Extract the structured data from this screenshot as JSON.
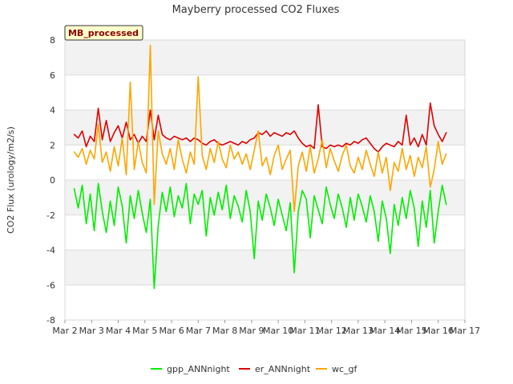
{
  "chart_data": {
    "type": "line",
    "title": "Mayberry processed CO2 Fluxes",
    "ylabel": "CO2 Flux (urology/m2/s)",
    "xlabel": "",
    "tag": "MB_processed",
    "ylim": [
      -8,
      8
    ],
    "yticks": [
      -8,
      -6,
      -4,
      -2,
      0,
      2,
      4,
      6,
      8
    ],
    "xlim": [
      2,
      17
    ],
    "xticks": [
      {
        "v": 2,
        "label": "Mar 2"
      },
      {
        "v": 3,
        "label": "Mar 3"
      },
      {
        "v": 4,
        "label": "Mar 4"
      },
      {
        "v": 5,
        "label": "Mar 5"
      },
      {
        "v": 6,
        "label": "Mar 6"
      },
      {
        "v": 7,
        "label": "Mar 7"
      },
      {
        "v": 8,
        "label": "Mar 8"
      },
      {
        "v": 9,
        "label": "Mar 9"
      },
      {
        "v": 10,
        "label": "Mar 10"
      },
      {
        "v": 11,
        "label": "Mar 11"
      },
      {
        "v": 12,
        "label": "Mar 12"
      },
      {
        "v": 13,
        "label": "Mar 13"
      },
      {
        "v": 14,
        "label": "Mar 14"
      },
      {
        "v": 15,
        "label": "Mar 15"
      },
      {
        "v": 16,
        "label": "Mar 16"
      },
      {
        "v": 17,
        "label": "Mar 17"
      }
    ],
    "series": [
      {
        "name": "gpp_ANNnight",
        "color": "#00ee00",
        "x": [
          2.35,
          2.5,
          2.65,
          2.8,
          2.95,
          3.1,
          3.25,
          3.4,
          3.55,
          3.7,
          3.85,
          4.0,
          4.15,
          4.3,
          4.45,
          4.6,
          4.75,
          4.9,
          5.05,
          5.2,
          5.35,
          5.5,
          5.65,
          5.8,
          5.95,
          6.1,
          6.25,
          6.4,
          6.55,
          6.7,
          6.85,
          7.0,
          7.15,
          7.3,
          7.45,
          7.6,
          7.75,
          7.9,
          8.05,
          8.2,
          8.35,
          8.5,
          8.65,
          8.8,
          8.95,
          9.1,
          9.25,
          9.4,
          9.55,
          9.7,
          9.85,
          10.0,
          10.15,
          10.3,
          10.45,
          10.6,
          10.75,
          10.9,
          11.05,
          11.2,
          11.35,
          11.5,
          11.65,
          11.8,
          11.95,
          12.1,
          12.25,
          12.4,
          12.55,
          12.7,
          12.85,
          13.0,
          13.15,
          13.3,
          13.45,
          13.6,
          13.75,
          13.9,
          14.05,
          14.2,
          14.35,
          14.5,
          14.65,
          14.8,
          14.95,
          15.1,
          15.25,
          15.4,
          15.55,
          15.7,
          15.85,
          16.0,
          16.15,
          16.3
        ],
        "y": [
          -0.5,
          -1.6,
          -0.3,
          -2.5,
          -0.8,
          -2.9,
          -0.2,
          -1.8,
          -3.0,
          -1.2,
          -2.6,
          -0.4,
          -1.5,
          -3.6,
          -0.9,
          -2.2,
          -0.6,
          -1.9,
          -3.0,
          -1.1,
          -6.2,
          -2.6,
          -0.7,
          -1.8,
          -0.4,
          -2.1,
          -0.9,
          -1.6,
          -0.2,
          -2.5,
          -0.8,
          -1.4,
          -0.6,
          -3.2,
          -1.0,
          -2.0,
          -0.7,
          -1.7,
          -0.3,
          -2.2,
          -0.9,
          -1.5,
          -2.4,
          -0.6,
          -1.8,
          -4.5,
          -1.2,
          -2.3,
          -0.8,
          -1.6,
          -2.6,
          -1.1,
          -2.0,
          -2.9,
          -1.3,
          -5.3,
          -1.8,
          -0.6,
          -1.1,
          -3.3,
          -0.9,
          -1.7,
          -2.5,
          -0.4,
          -1.4,
          -2.2,
          -0.8,
          -1.6,
          -2.7,
          -1.0,
          -2.3,
          -0.8,
          -1.5,
          -2.4,
          -0.9,
          -1.8,
          -3.5,
          -1.2,
          -2.2,
          -4.2,
          -1.4,
          -2.6,
          -1.0,
          -2.2,
          -0.6,
          -1.6,
          -3.8,
          -1.2,
          -2.7,
          -0.6,
          -3.6,
          -1.8,
          -0.3,
          -1.4
        ]
      },
      {
        "name": "er_ANNnight",
        "color": "#dd0000",
        "x": [
          2.35,
          2.5,
          2.65,
          2.8,
          2.95,
          3.1,
          3.25,
          3.4,
          3.55,
          3.7,
          3.85,
          4.0,
          4.15,
          4.3,
          4.45,
          4.6,
          4.75,
          4.9,
          5.05,
          5.2,
          5.35,
          5.5,
          5.65,
          5.8,
          5.95,
          6.1,
          6.25,
          6.4,
          6.55,
          6.7,
          6.85,
          7.0,
          7.15,
          7.3,
          7.45,
          7.6,
          7.75,
          7.9,
          8.05,
          8.2,
          8.35,
          8.5,
          8.65,
          8.8,
          8.95,
          9.1,
          9.25,
          9.4,
          9.55,
          9.7,
          9.85,
          10.0,
          10.15,
          10.3,
          10.45,
          10.6,
          10.75,
          10.9,
          11.05,
          11.2,
          11.35,
          11.5,
          11.65,
          11.8,
          11.95,
          12.1,
          12.25,
          12.4,
          12.55,
          12.7,
          12.85,
          13.0,
          13.15,
          13.3,
          13.45,
          13.6,
          13.75,
          13.9,
          14.05,
          14.2,
          14.35,
          14.5,
          14.65,
          14.8,
          14.95,
          15.1,
          15.25,
          15.4,
          15.55,
          15.7,
          15.85,
          16.0,
          16.15,
          16.3
        ],
        "y": [
          2.6,
          2.4,
          2.8,
          1.9,
          2.5,
          2.2,
          4.1,
          2.3,
          3.4,
          2.2,
          2.7,
          3.1,
          2.4,
          3.3,
          2.3,
          2.6,
          2.1,
          2.5,
          2.2,
          4.0,
          2.3,
          3.7,
          2.6,
          2.4,
          2.3,
          2.5,
          2.4,
          2.3,
          2.4,
          2.2,
          2.4,
          2.3,
          2.1,
          2.0,
          2.2,
          2.3,
          2.1,
          2.0,
          2.1,
          2.2,
          2.1,
          2.0,
          2.2,
          2.1,
          2.3,
          2.4,
          2.7,
          2.6,
          2.8,
          2.5,
          2.7,
          2.6,
          2.5,
          2.7,
          2.6,
          2.8,
          2.4,
          2.1,
          1.9,
          2.0,
          1.8,
          4.3,
          1.9,
          1.8,
          2.0,
          1.9,
          2.0,
          1.9,
          2.1,
          2.0,
          2.2,
          2.1,
          2.3,
          2.4,
          2.1,
          1.8,
          1.6,
          1.9,
          2.1,
          2.0,
          1.9,
          2.2,
          2.0,
          3.7,
          2.0,
          2.4,
          1.9,
          2.6,
          2.0,
          4.4,
          3.1,
          2.6,
          2.2,
          2.7
        ]
      },
      {
        "name": "wc_gf",
        "color": "#ffa500",
        "x": [
          2.35,
          2.5,
          2.65,
          2.8,
          2.95,
          3.1,
          3.25,
          3.4,
          3.55,
          3.7,
          3.85,
          4.0,
          4.15,
          4.3,
          4.45,
          4.6,
          4.75,
          4.9,
          5.05,
          5.2,
          5.35,
          5.5,
          5.65,
          5.8,
          5.95,
          6.1,
          6.25,
          6.4,
          6.55,
          6.7,
          6.85,
          7.0,
          7.15,
          7.3,
          7.45,
          7.6,
          7.75,
          7.9,
          8.05,
          8.2,
          8.35,
          8.5,
          8.65,
          8.8,
          8.95,
          9.1,
          9.25,
          9.4,
          9.55,
          9.7,
          9.85,
          10.0,
          10.15,
          10.3,
          10.45,
          10.6,
          10.75,
          10.9,
          11.05,
          11.2,
          11.35,
          11.5,
          11.65,
          11.8,
          11.95,
          12.1,
          12.25,
          12.4,
          12.55,
          12.7,
          12.85,
          13.0,
          13.15,
          13.3,
          13.45,
          13.6,
          13.75,
          13.9,
          14.05,
          14.2,
          14.35,
          14.5,
          14.65,
          14.8,
          14.95,
          15.1,
          15.25,
          15.4,
          15.55,
          15.7,
          15.85,
          16.0,
          16.15,
          16.3
        ],
        "y": [
          1.6,
          1.3,
          1.8,
          0.9,
          1.7,
          1.2,
          3.2,
          1.0,
          1.6,
          0.5,
          1.9,
          0.8,
          2.4,
          0.3,
          5.6,
          0.6,
          2.2,
          1.0,
          0.4,
          7.7,
          -1.4,
          2.8,
          1.5,
          0.9,
          1.8,
          0.6,
          2.3,
          1.2,
          0.4,
          1.6,
          0.9,
          5.9,
          1.4,
          0.6,
          1.8,
          1.0,
          2.2,
          1.2,
          0.7,
          2.0,
          1.2,
          1.6,
          0.9,
          1.5,
          0.6,
          1.7,
          2.8,
          0.8,
          1.3,
          0.3,
          1.4,
          2.0,
          0.6,
          1.2,
          1.7,
          -1.8,
          0.8,
          1.6,
          0.5,
          1.9,
          0.4,
          1.2,
          2.3,
          0.7,
          1.8,
          1.1,
          0.5,
          1.4,
          2.0,
          0.8,
          0.4,
          1.3,
          0.6,
          1.7,
          0.9,
          0.2,
          1.6,
          0.4,
          1.3,
          -0.6,
          1.0,
          0.5,
          1.8,
          0.6,
          1.4,
          0.2,
          1.3,
          0.7,
          1.9,
          -0.4,
          0.6,
          2.2,
          0.9,
          1.5
        ]
      }
    ]
  }
}
